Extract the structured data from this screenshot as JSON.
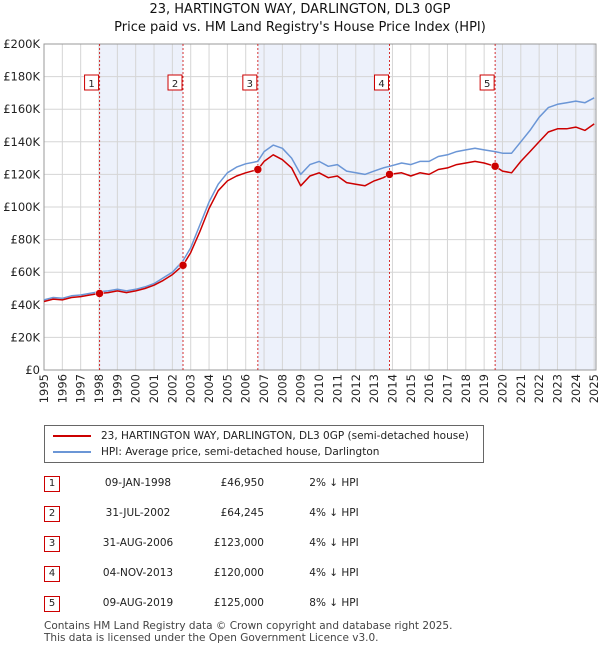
{
  "chart_data": {
    "type": "line",
    "title": "23, HARTINGTON WAY, DARLINGTON, DL3 0GP",
    "subtitle": "Price paid vs. HM Land Registry's House Price Index (HPI)",
    "xlabel": "",
    "ylabel": "",
    "xlim": [
      1995,
      2025.1
    ],
    "ylim": [
      0,
      200000
    ],
    "y_ticks": [
      0,
      20000,
      40000,
      60000,
      80000,
      100000,
      120000,
      140000,
      160000,
      180000,
      200000
    ],
    "y_tick_labels": [
      "£0",
      "£20K",
      "£40K",
      "£60K",
      "£80K",
      "£100K",
      "£120K",
      "£140K",
      "£160K",
      "£180K",
      "£200K"
    ],
    "x_ticks": [
      1995,
      1996,
      1997,
      1998,
      1999,
      2000,
      2001,
      2002,
      2003,
      2004,
      2005,
      2006,
      2007,
      2008,
      2009,
      2010,
      2011,
      2012,
      2013,
      2014,
      2015,
      2016,
      2017,
      2018,
      2019,
      2020,
      2021,
      2022,
      2023,
      2024,
      2025
    ],
    "x_tick_labels": [
      "1995",
      "1996",
      "1997",
      "1998",
      "1999",
      "2000",
      "2001",
      "2002",
      "2003",
      "2004",
      "2005",
      "2006",
      "2007",
      "2008",
      "2009",
      "2010",
      "2011",
      "2012",
      "2013",
      "2014",
      "2015",
      "2016",
      "2017",
      "2018",
      "2019",
      "2020",
      "2021",
      "2022",
      "2023",
      "2024",
      "2025"
    ],
    "grid": true,
    "series": [
      {
        "name": "23, HARTINGTON WAY, DARLINGTON, DL3 0GP (semi-detached house)",
        "color": "#cc0000",
        "x": [
          1995.0,
          1995.5,
          1996.0,
          1996.5,
          1997.0,
          1997.5,
          1998.0,
          1998.5,
          1999.0,
          1999.5,
          2000.0,
          2000.5,
          2001.0,
          2001.5,
          2002.0,
          2002.58,
          2003.0,
          2003.5,
          2004.0,
          2004.5,
          2005.0,
          2005.5,
          2006.0,
          2006.66,
          2007.0,
          2007.5,
          2008.0,
          2008.5,
          2009.0,
          2009.5,
          2010.0,
          2010.5,
          2011.0,
          2011.5,
          2012.0,
          2012.5,
          2013.0,
          2013.5,
          2013.84,
          2014.5,
          2015.0,
          2015.5,
          2016.0,
          2016.5,
          2017.0,
          2017.5,
          2018.0,
          2018.5,
          2019.0,
          2019.6,
          2020.0,
          2020.5,
          2021.0,
          2021.5,
          2022.0,
          2022.5,
          2023.0,
          2023.5,
          2024.0,
          2024.5,
          2025.0
        ],
        "values": [
          42000,
          43500,
          43000,
          44500,
          45000,
          46000,
          46950,
          47500,
          48500,
          47500,
          48500,
          50000,
          52000,
          55000,
          58500,
          64245,
          72000,
          85000,
          99000,
          110000,
          116000,
          119000,
          121000,
          123000,
          128000,
          132000,
          129000,
          124000,
          113000,
          119000,
          121000,
          118000,
          119000,
          115000,
          114000,
          113000,
          116000,
          118000,
          120000,
          121000,
          119000,
          121000,
          120000,
          123000,
          124000,
          126000,
          127000,
          128000,
          127000,
          125000,
          122000,
          121000,
          128000,
          134000,
          140000,
          146000,
          148000,
          148000,
          149000,
          147000,
          151000
        ]
      },
      {
        "name": "HPI: Average price, semi-detached house, Darlington",
        "color": "#6b96d6",
        "x": [
          1995.0,
          1995.5,
          1996.0,
          1996.5,
          1997.0,
          1997.5,
          1998.0,
          1998.5,
          1999.0,
          1999.5,
          2000.0,
          2000.5,
          2001.0,
          2001.5,
          2002.0,
          2002.58,
          2003.0,
          2003.5,
          2004.0,
          2004.5,
          2005.0,
          2005.5,
          2006.0,
          2006.66,
          2007.0,
          2007.5,
          2008.0,
          2008.5,
          2009.0,
          2009.5,
          2010.0,
          2010.5,
          2011.0,
          2011.5,
          2012.0,
          2012.5,
          2013.0,
          2013.5,
          2013.84,
          2014.5,
          2015.0,
          2015.5,
          2016.0,
          2016.5,
          2017.0,
          2017.5,
          2018.0,
          2018.5,
          2019.0,
          2019.6,
          2020.0,
          2020.5,
          2021.0,
          2021.5,
          2022.0,
          2022.5,
          2023.0,
          2023.5,
          2024.0,
          2024.5,
          2025.0
        ],
        "values": [
          43000,
          44500,
          44000,
          45500,
          46000,
          47000,
          48000,
          48500,
          49500,
          48500,
          49500,
          51000,
          53000,
          56500,
          60000,
          67000,
          75000,
          89000,
          103000,
          114000,
          121000,
          124500,
          126500,
          128000,
          134000,
          138000,
          136000,
          130000,
          120000,
          126000,
          128000,
          125000,
          126000,
          122000,
          121000,
          120000,
          122000,
          124000,
          125000,
          127000,
          126000,
          128000,
          128000,
          131000,
          132000,
          134000,
          135000,
          136000,
          135000,
          134000,
          133000,
          133000,
          140000,
          147000,
          155000,
          161000,
          163000,
          164000,
          165000,
          164000,
          167000
        ]
      }
    ],
    "sales": [
      {
        "marker": "1",
        "x": 1998.03,
        "price": 46950
      },
      {
        "marker": "2",
        "x": 2002.58,
        "price": 64245
      },
      {
        "marker": "3",
        "x": 2006.66,
        "price": 123000
      },
      {
        "marker": "4",
        "x": 2013.84,
        "price": 120000
      },
      {
        "marker": "5",
        "x": 2019.6,
        "price": 125000
      }
    ]
  },
  "legend": {
    "property": "23, HARTINGTON WAY, DARLINGTON, DL3 0GP (semi-detached house)",
    "hpi": "HPI: Average price, semi-detached house, Darlington"
  },
  "transactions": [
    {
      "num": "1",
      "date": "09-JAN-1998",
      "price": "£46,950",
      "hpi": "2% ↓ HPI"
    },
    {
      "num": "2",
      "date": "31-JUL-2002",
      "price": "£64,245",
      "hpi": "4% ↓ HPI"
    },
    {
      "num": "3",
      "date": "31-AUG-2006",
      "price": "£123,000",
      "hpi": "4% ↓ HPI"
    },
    {
      "num": "4",
      "date": "04-NOV-2013",
      "price": "£120,000",
      "hpi": "4% ↓ HPI"
    },
    {
      "num": "5",
      "date": "09-AUG-2019",
      "price": "£125,000",
      "hpi": "8% ↓ HPI"
    }
  ],
  "footer": {
    "line1": "Contains HM Land Registry data © Crown copyright and database right 2025.",
    "line2": "This data is licensed under the Open Government Licence v3.0."
  }
}
